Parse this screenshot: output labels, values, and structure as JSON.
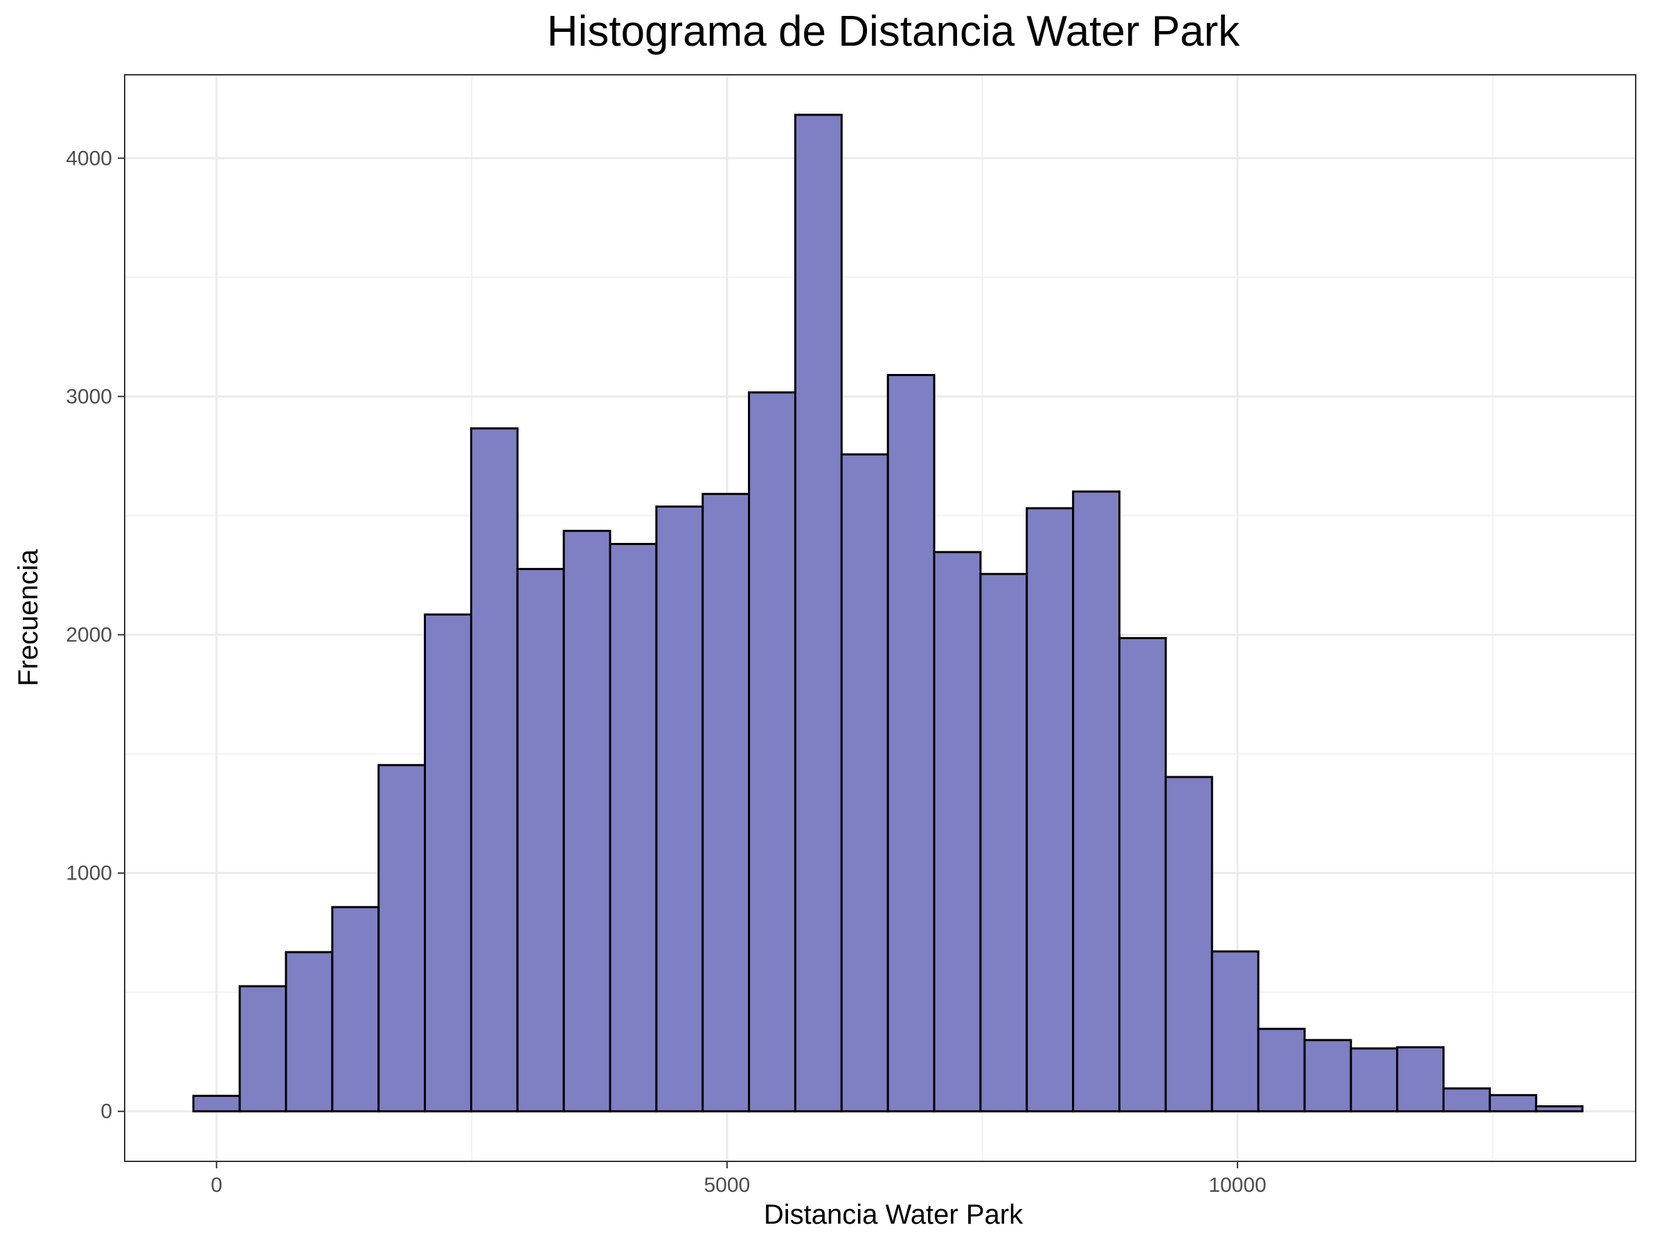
{
  "chart_data": {
    "type": "bar",
    "title": "Histograma de Distancia Water Park",
    "xlabel": "Distancia Water Park",
    "ylabel": "Frecuencia",
    "bin_width": 453.5,
    "first_bin_center": 0,
    "values": [
      65,
      525,
      668,
      857,
      1453,
      2085,
      2866,
      2276,
      2436,
      2381,
      2538,
      2591,
      3017,
      4182,
      2757,
      3090,
      2347,
      2255,
      2531,
      2601,
      1986,
      1403,
      671,
      346,
      299,
      264,
      269,
      96,
      68,
      21
    ],
    "xlim": [
      -900,
      13900
    ],
    "ylim": [
      -210,
      4350
    ],
    "x_ticks": [
      0,
      5000,
      10000
    ],
    "x_tick_labels": [
      "0",
      "5000",
      "10000"
    ],
    "x_minor_ticks": [
      2500,
      7500,
      12500
    ],
    "y_ticks": [
      0,
      1000,
      2000,
      3000,
      4000
    ],
    "y_tick_labels": [
      "0",
      "1000",
      "2000",
      "3000",
      "4000"
    ],
    "y_minor_ticks": [
      500,
      1500,
      2500,
      3500
    ],
    "grid": true,
    "legend": false,
    "colors": {
      "bar_fill": "#7f7fc4",
      "bar_stroke": "#000000",
      "grid_major": "#ebebeb",
      "grid_minor": "#f2f2f2",
      "panel_border": "#333333"
    }
  }
}
